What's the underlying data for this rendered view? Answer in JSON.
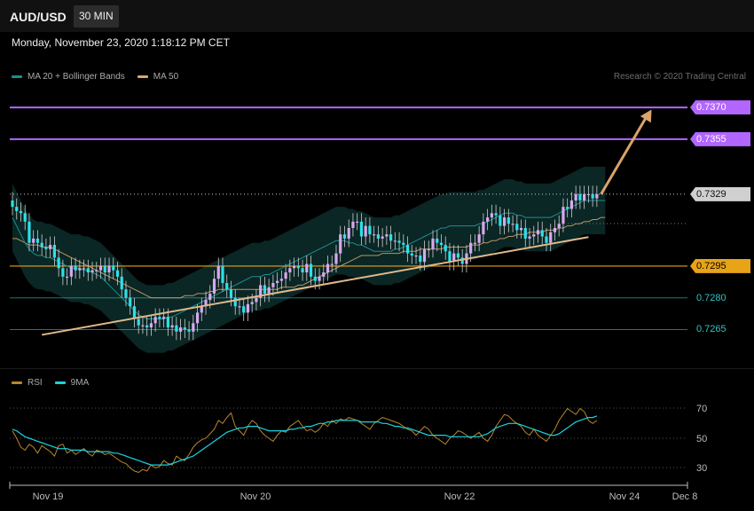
{
  "header": {
    "symbol": "AUD/USD",
    "timeframe": "30 MIN"
  },
  "timestamp": "Monday, November 23, 2020 1:18:12 PM CET",
  "legend": {
    "main": [
      {
        "label": "MA 20 + Bollinger Bands",
        "color": "#1b8f8f"
      },
      {
        "label": "MA 50",
        "color": "#d9a86c"
      }
    ],
    "rsi": [
      {
        "label": "RSI",
        "color": "#b8862f"
      },
      {
        "label": "9MA",
        "color": "#19d3e0"
      }
    ]
  },
  "credit": "Research © 2020 Trading Central",
  "chart_data": {
    "type": "candlestick",
    "ylim": [
      0.7248,
      0.7378
    ],
    "levels": [
      {
        "value": 0.737,
        "label": "0.7370",
        "style": "resistance",
        "color": "#b266ff"
      },
      {
        "value": 0.7355,
        "label": "0.7355",
        "style": "resistance",
        "color": "#b266ff"
      },
      {
        "value": 0.7329,
        "label": "0.7329",
        "style": "current",
        "color": "#d0d0d0"
      },
      {
        "value": 0.7295,
        "label": "0.7295",
        "style": "pivot",
        "color": "#e8a317"
      },
      {
        "value": 0.728,
        "label": "0.7280",
        "style": "support",
        "color": "#2ec4c4"
      },
      {
        "value": 0.7265,
        "label": "0.7265",
        "style": "support",
        "color": "#2ec4c4"
      }
    ],
    "x_ticks": [
      "Nov 19",
      "Nov 20",
      "Nov 22",
      "Nov 24",
      "Dec 8"
    ],
    "close": [
      0.7323,
      0.7321,
      0.732,
      0.7316,
      0.7306,
      0.7308,
      0.7306,
      0.7304,
      0.7303,
      0.7305,
      0.7299,
      0.7294,
      0.729,
      0.729,
      0.7295,
      0.7293,
      0.7294,
      0.7294,
      0.7292,
      0.7293,
      0.7293,
      0.7295,
      0.7292,
      0.7295,
      0.7293,
      0.729,
      0.7284,
      0.728,
      0.7276,
      0.727,
      0.7267,
      0.7267,
      0.7266,
      0.7268,
      0.7271,
      0.727,
      0.7271,
      0.7266,
      0.7267,
      0.7264,
      0.7266,
      0.7265,
      0.7264,
      0.7268,
      0.7273,
      0.7276,
      0.7279,
      0.7282,
      0.7289,
      0.7295,
      0.7287,
      0.7284,
      0.728,
      0.7276,
      0.7276,
      0.7273,
      0.7277,
      0.7278,
      0.728,
      0.7286,
      0.7282,
      0.7285,
      0.7287,
      0.7288,
      0.7289,
      0.7292,
      0.7294,
      0.7295,
      0.7294,
      0.7292,
      0.7296,
      0.729,
      0.7288,
      0.729,
      0.7292,
      0.7296,
      0.7296,
      0.7301,
      0.731,
      0.7308,
      0.7313,
      0.7316,
      0.7316,
      0.7309,
      0.7314,
      0.731,
      0.731,
      0.7308,
      0.7309,
      0.731,
      0.7307,
      0.7307,
      0.7306,
      0.7305,
      0.7301,
      0.73,
      0.73,
      0.7297,
      0.7303,
      0.7303,
      0.7308,
      0.7306,
      0.7305,
      0.7302,
      0.7297,
      0.7301,
      0.7299,
      0.7296,
      0.7301,
      0.7306,
      0.7306,
      0.731,
      0.7316,
      0.7318,
      0.732,
      0.7319,
      0.7314,
      0.7318,
      0.7315,
      0.7315,
      0.7312,
      0.7313,
      0.7308,
      0.7309,
      0.731,
      0.7312,
      0.7309,
      0.7306,
      0.7311,
      0.7313,
      0.7315,
      0.7323,
      0.7322,
      0.7326,
      0.7329,
      0.7326,
      0.7329,
      0.7329,
      0.7327,
      0.7329
    ],
    "ma20": [
      0.7318,
      0.7314,
      0.731,
      0.7306,
      0.7303,
      0.7301,
      0.73,
      0.73,
      0.7299,
      0.7299,
      0.7298,
      0.7297,
      0.7296,
      0.7295,
      0.7294,
      0.7294,
      0.7294,
      0.7293,
      0.7293,
      0.7292,
      0.7291,
      0.729,
      0.7288,
      0.7286,
      0.7284,
      0.7282,
      0.728,
      0.7278,
      0.7276,
      0.7274,
      0.7272,
      0.7271,
      0.727,
      0.727,
      0.727,
      0.727,
      0.727,
      0.7271,
      0.7271,
      0.7272,
      0.7273,
      0.7274,
      0.7275,
      0.7276,
      0.7277,
      0.7278,
      0.7279,
      0.728,
      0.7281,
      0.7282,
      0.7283,
      0.7284,
      0.7285,
      0.7286,
      0.7287,
      0.7288,
      0.7289,
      0.729,
      0.729,
      0.729,
      0.7291,
      0.7291,
      0.7292,
      0.7293,
      0.7294,
      0.7295,
      0.7296,
      0.7297,
      0.7298,
      0.7299,
      0.73,
      0.7301,
      0.7302,
      0.7303,
      0.7304,
      0.7305,
      0.7306,
      0.7307,
      0.7307,
      0.7307,
      0.7306,
      0.7306,
      0.7305,
      0.7305,
      0.7304,
      0.7303,
      0.7302,
      0.7302,
      0.7302,
      0.7302,
      0.7302,
      0.7303,
      0.7303,
      0.7304,
      0.7305,
      0.7306,
      0.7307,
      0.7308,
      0.7309,
      0.731,
      0.7311,
      0.7312,
      0.7313,
      0.7313,
      0.7314,
      0.7314,
      0.7314,
      0.7314,
      0.7314,
      0.7314,
      0.7314,
      0.7315,
      0.7315,
      0.7316,
      0.7317,
      0.7318,
      0.7319,
      0.732,
      0.732,
      0.732,
      0.7319,
      0.7319,
      0.7318,
      0.7318,
      0.7318,
      0.7318,
      0.7318,
      0.7318,
      0.7318,
      0.7319,
      0.732,
      0.7321,
      0.7322,
      0.7323,
      0.7324,
      0.7325,
      0.7326,
      0.7326,
      0.7326,
      0.7326,
      0.7326,
      0.7326
    ],
    "ma50": [
      0.7308,
      0.7308,
      0.7307,
      0.7306,
      0.7305,
      0.7305,
      0.7305,
      0.7304,
      0.7304,
      0.7304,
      0.7303,
      0.7302,
      0.7301,
      0.73,
      0.7299,
      0.7298,
      0.7297,
      0.7296,
      0.7295,
      0.7294,
      0.7293,
      0.7292,
      0.7291,
      0.729,
      0.7289,
      0.7288,
      0.7287,
      0.7286,
      0.7285,
      0.7284,
      0.7283,
      0.7282,
      0.7281,
      0.728,
      0.728,
      0.728,
      0.728,
      0.728,
      0.728,
      0.728,
      0.728,
      0.7281,
      0.7281,
      0.7281,
      0.7282,
      0.7282,
      0.7282,
      0.7283,
      0.7283,
      0.7284,
      0.7284,
      0.7284,
      0.7284,
      0.7284,
      0.7284,
      0.7284,
      0.7284,
      0.7284,
      0.7284,
      0.7284,
      0.7284,
      0.7284,
      0.7284,
      0.7284,
      0.7285,
      0.7285,
      0.7285,
      0.7285,
      0.7286,
      0.7286,
      0.7287,
      0.7288,
      0.7289,
      0.729,
      0.7291,
      0.7292,
      0.7293,
      0.7294,
      0.7295,
      0.7296,
      0.7297,
      0.7298,
      0.7299,
      0.73,
      0.73,
      0.73,
      0.73,
      0.73,
      0.7301,
      0.7301,
      0.7301,
      0.7301,
      0.7301,
      0.7302,
      0.7302,
      0.7302,
      0.7302,
      0.7303,
      0.7303,
      0.7303,
      0.7303,
      0.7303,
      0.7303,
      0.7304,
      0.7304,
      0.7304,
      0.7304,
      0.7304,
      0.7304,
      0.7305,
      0.7305,
      0.7305,
      0.7306,
      0.7306,
      0.7307,
      0.7307,
      0.7308,
      0.7308,
      0.7309,
      0.7309,
      0.731,
      0.731,
      0.731,
      0.7311,
      0.7311,
      0.7311,
      0.7311,
      0.7312,
      0.7312,
      0.7312,
      0.7313,
      0.7313,
      0.7314,
      0.7314,
      0.7315,
      0.7315,
      0.7316,
      0.7316,
      0.7317,
      0.7317,
      0.7318,
      0.7318
    ],
    "band_width": 0.0016,
    "trendline": {
      "start": [
        7,
        0.72625
      ],
      "end": [
        137,
        0.73087
      ]
    },
    "projection": {
      "start": [
        140,
        0.7329
      ],
      "end": [
        152,
        0.7369
      ]
    },
    "rsi": {
      "ylim": [
        20,
        80
      ],
      "levels": [
        70,
        50,
        30
      ],
      "rsi": [
        55,
        50,
        44,
        42,
        46,
        44,
        40,
        45,
        43,
        41,
        38,
        45,
        46,
        40,
        42,
        39,
        41,
        43,
        40,
        38,
        42,
        41,
        39,
        40,
        38,
        36,
        34,
        33,
        30,
        28,
        27,
        29,
        28,
        32,
        30,
        31,
        35,
        33,
        32,
        38,
        36,
        35,
        39,
        44,
        47,
        49,
        50,
        53,
        56,
        62,
        60,
        64,
        67,
        58,
        55,
        52,
        58,
        62,
        60,
        55,
        52,
        50,
        48,
        52,
        55,
        54,
        58,
        60,
        62,
        58,
        55,
        56,
        54,
        56,
        60,
        58,
        62,
        60,
        63,
        62,
        64,
        63,
        62,
        60,
        58,
        56,
        60,
        62,
        64,
        63,
        62,
        61,
        60,
        58,
        56,
        55,
        52,
        55,
        58,
        56,
        52,
        50,
        48,
        46,
        50,
        52,
        55,
        54,
        52,
        50,
        52,
        54,
        50,
        48,
        52,
        58,
        62,
        66,
        65,
        62,
        60,
        58,
        54,
        52,
        56,
        52,
        50,
        48,
        52,
        56,
        62,
        66,
        70,
        68,
        66,
        70,
        68,
        62,
        60,
        62
      ],
      "ma9": [
        56,
        55,
        53,
        51,
        50,
        49,
        48,
        47,
        46,
        45,
        44,
        43,
        43,
        43,
        42,
        42,
        42,
        42,
        41,
        41,
        41,
        41,
        41,
        41,
        40,
        40,
        39,
        38,
        37,
        36,
        35,
        34,
        33,
        32,
        32,
        32,
        32,
        32,
        33,
        34,
        35,
        36,
        37,
        38,
        40,
        42,
        44,
        46,
        48,
        50,
        52,
        54,
        55,
        56,
        57,
        57,
        58,
        58,
        58,
        57,
        56,
        55,
        55,
        55,
        55,
        55,
        56,
        56,
        57,
        57,
        58,
        58,
        59,
        60,
        60,
        61,
        61,
        62,
        62,
        62,
        62,
        62,
        62,
        61,
        61,
        61,
        61,
        61,
        60,
        60,
        59,
        58,
        58,
        57,
        57,
        56,
        55,
        54,
        53,
        52,
        52,
        52,
        52,
        52,
        51,
        51,
        51,
        51,
        51,
        51,
        51,
        51,
        52,
        53,
        55,
        57,
        58,
        59,
        60,
        60,
        60,
        59,
        58,
        57,
        56,
        55,
        54,
        53,
        52,
        52,
        53,
        55,
        57,
        59,
        61,
        62,
        63,
        64,
        64,
        65
      ]
    }
  }
}
